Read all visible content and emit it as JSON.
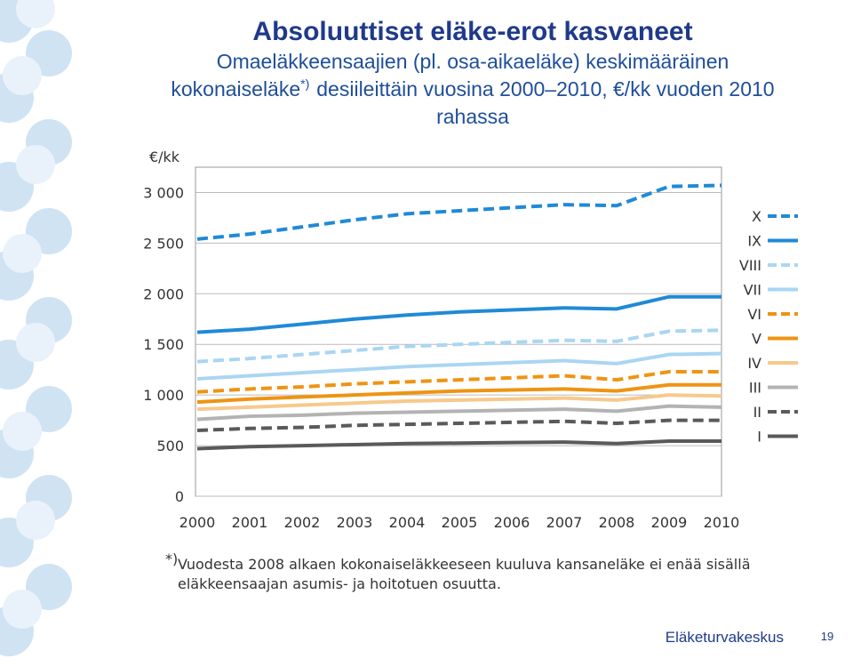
{
  "chart_data": {
    "type": "line",
    "title": "Absoluuttiset eläke-erot kasvaneet",
    "subtitle_line1": "Omaeläkkeensaajien (pl. osa-aikaeläke) keskimääräinen",
    "subtitle_line2a": "kokonaiseläke",
    "subtitle_mark": "*)",
    "subtitle_line2b": "desiileittäin vuosina 2000–2010, €/kk vuoden 2010",
    "subtitle_line3": "rahassa",
    "y_label": "€/kk",
    "categories": [
      "2000",
      "2001",
      "2002",
      "2003",
      "2004",
      "2005",
      "2006",
      "2007",
      "2008",
      "2009",
      "2010"
    ],
    "ylim": [
      0,
      3250
    ],
    "yticks": [
      0,
      500,
      {
        "value": 1000,
        "label": "1 000"
      },
      {
        "value": 1500,
        "label": "1 500"
      },
      {
        "value": 2000,
        "label": "2 000"
      },
      {
        "value": 2500,
        "label": "2 500"
      },
      {
        "value": 3000,
        "label": "3 000"
      }
    ],
    "grid": true,
    "legend": "right",
    "series": [
      {
        "name": "X",
        "color": "#1f8ad6",
        "dashed": true,
        "values": [
          2540,
          2590,
          2660,
          2730,
          2790,
          2820,
          2850,
          2880,
          2870,
          3060,
          3070
        ]
      },
      {
        "name": "IX",
        "color": "#1f8ad6",
        "dashed": false,
        "values": [
          1620,
          1650,
          1700,
          1750,
          1790,
          1820,
          1840,
          1860,
          1850,
          1970,
          1970
        ]
      },
      {
        "name": "VIII",
        "color": "#a9d6f2",
        "dashed": true,
        "values": [
          1330,
          1360,
          1400,
          1440,
          1480,
          1500,
          1520,
          1540,
          1530,
          1630,
          1640
        ]
      },
      {
        "name": "VII",
        "color": "#a9d6f2",
        "dashed": false,
        "values": [
          1160,
          1190,
          1220,
          1250,
          1280,
          1300,
          1320,
          1340,
          1310,
          1400,
          1410
        ]
      },
      {
        "name": "VI",
        "color": "#ee9412",
        "dashed": true,
        "values": [
          1030,
          1060,
          1080,
          1110,
          1130,
          1150,
          1170,
          1190,
          1150,
          1230,
          1230
        ]
      },
      {
        "name": "V",
        "color": "#ee9412",
        "dashed": false,
        "values": [
          930,
          960,
          980,
          1000,
          1020,
          1040,
          1050,
          1060,
          1040,
          1100,
          1100
        ]
      },
      {
        "name": "IV",
        "color": "#f6c98c",
        "dashed": false,
        "values": [
          860,
          880,
          900,
          920,
          940,
          950,
          960,
          970,
          950,
          1000,
          990
        ]
      },
      {
        "name": "III",
        "color": "#b3b3b3",
        "dashed": false,
        "values": [
          760,
          790,
          800,
          820,
          830,
          840,
          850,
          860,
          840,
          890,
          880
        ]
      },
      {
        "name": "II",
        "color": "#5a5a5a",
        "dashed": true,
        "values": [
          650,
          670,
          680,
          700,
          710,
          720,
          730,
          740,
          720,
          750,
          750
        ]
      },
      {
        "name": "I",
        "color": "#5a5a5a",
        "dashed": false,
        "values": [
          470,
          490,
          500,
          510,
          520,
          525,
          530,
          535,
          520,
          545,
          545
        ]
      }
    ],
    "footnote_mark": "*)",
    "footnote_line1": "Vuodesta 2008 alkaen kokonaiseläkkeeseen kuuluva kansaneläke ei enää sisällä",
    "footnote_line2": "eläkkeensaajan asumis- ja hoitotuen osuutta."
  },
  "footer": {
    "organization": "Eläketurvakeskus",
    "page": "19"
  }
}
